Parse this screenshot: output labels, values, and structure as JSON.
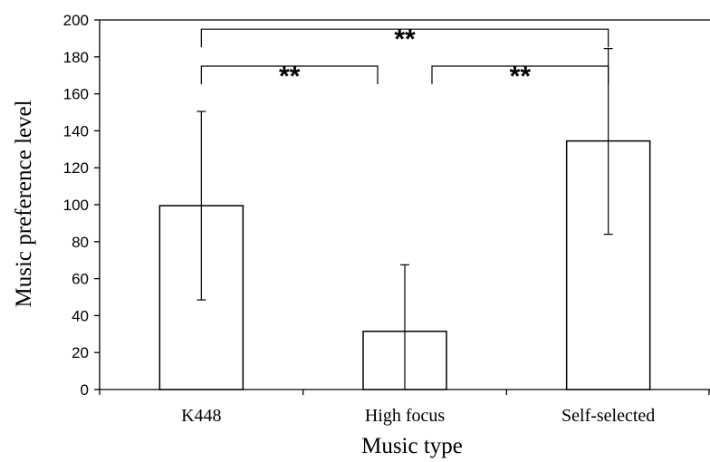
{
  "chart_data": {
    "type": "bar",
    "title": "",
    "xlabel": "Music type",
    "ylabel": "Music preference level",
    "categories": [
      "K448",
      "High focus",
      "Self-selected"
    ],
    "values": [
      99.5,
      31.5,
      134.5
    ],
    "error_high": [
      150.5,
      67.5,
      184.5
    ],
    "error_low": [
      48.5,
      0,
      84
    ],
    "ylim": [
      0,
      200
    ],
    "yticks": [
      "0",
      "20",
      "40",
      "60",
      "80",
      "100",
      "120",
      "140",
      "160",
      "180",
      "200"
    ],
    "grid": false,
    "legend": "none",
    "significance": [
      {
        "from": 0,
        "to": 1,
        "label": "**",
        "level": 175
      },
      {
        "from": 1,
        "to": 2,
        "label": "**",
        "level": 175
      },
      {
        "from": 0,
        "to": 2,
        "label": "**",
        "level": 195
      }
    ]
  }
}
